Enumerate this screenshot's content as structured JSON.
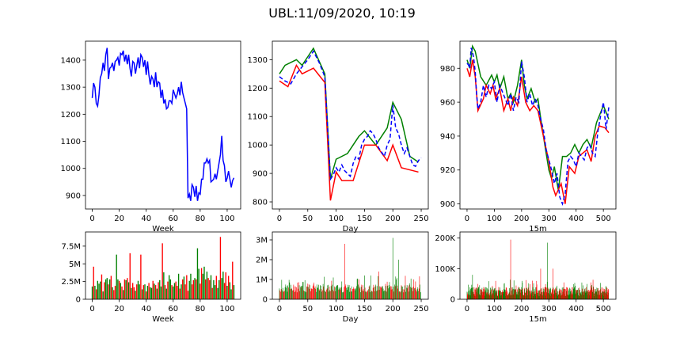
{
  "figure": {
    "title": "UBL:11/09/2020, 10:19"
  },
  "colors": {
    "price": "#0000ff",
    "high": "#008000",
    "low": "#ff0000",
    "up_bar": "#008000",
    "down_bar": "#ff0000"
  },
  "chart_data": [
    {
      "id": "week-price",
      "type": "line",
      "xlabel": "Week",
      "xlim": [
        -5,
        110
      ],
      "ylim": [
        850,
        1470
      ],
      "xticks": [
        0,
        20,
        40,
        60,
        80,
        100
      ],
      "yticks": [
        900,
        1000,
        1100,
        1200,
        1300,
        1400
      ],
      "series": [
        {
          "color": "#0000ff",
          "style": "solid",
          "x": [
            0,
            1,
            2,
            3,
            4,
            5,
            6,
            7,
            8,
            9,
            10,
            11,
            12,
            13,
            14,
            15,
            16,
            17,
            18,
            19,
            20,
            21,
            22,
            23,
            24,
            25,
            26,
            27,
            28,
            29,
            30,
            31,
            32,
            33,
            34,
            35,
            36,
            37,
            38,
            39,
            40,
            41,
            42,
            43,
            44,
            45,
            46,
            47,
            48,
            49,
            50,
            51,
            52,
            53,
            54,
            55,
            56,
            57,
            58,
            59,
            60,
            61,
            62,
            63,
            64,
            65,
            66,
            67,
            68,
            69,
            70,
            71,
            72,
            73,
            74,
            75,
            76,
            77,
            78,
            79,
            80,
            81,
            82,
            83,
            84,
            85,
            86,
            87,
            88,
            89,
            90,
            91,
            92,
            93,
            94,
            95,
            96,
            97,
            98,
            99,
            100,
            101,
            102,
            103,
            104,
            105
          ],
          "values": [
            1260,
            1315,
            1300,
            1240,
            1230,
            1270,
            1335,
            1350,
            1390,
            1360,
            1420,
            1445,
            1330,
            1370,
            1375,
            1390,
            1360,
            1395,
            1400,
            1410,
            1380,
            1425,
            1420,
            1435,
            1395,
            1420,
            1385,
            1420,
            1370,
            1340,
            1395,
            1390,
            1350,
            1380,
            1410,
            1370,
            1420,
            1410,
            1375,
            1400,
            1345,
            1395,
            1345,
            1310,
            1340,
            1330,
            1300,
            1355,
            1300,
            1320,
            1315,
            1260,
            1290,
            1240,
            1255,
            1220,
            1225,
            1250,
            1250,
            1240,
            1290,
            1275,
            1260,
            1275,
            1300,
            1270,
            1320,
            1280,
            1260,
            1240,
            1220,
            890,
            905,
            880,
            940,
            930,
            895,
            935,
            880,
            910,
            905,
            960,
            960,
            1020,
            1020,
            1035,
            1020,
            1030,
            950,
            955,
            960,
            980,
            960,
            990,
            1020,
            1050,
            1120,
            1030,
            1010,
            950,
            965,
            990,
            960,
            930,
            955,
            965
          ]
        }
      ]
    },
    {
      "id": "day-price",
      "type": "line",
      "xlabel": "Day",
      "xlim": [
        -12.5,
        262.5
      ],
      "ylim": [
        775,
        1365
      ],
      "xticks": [
        0,
        50,
        100,
        150,
        200,
        250
      ],
      "yticks": [
        800,
        900,
        1000,
        1100,
        1200,
        1300
      ],
      "series": [
        {
          "color": "#008000",
          "style": "solid",
          "x": [
            0,
            10,
            30,
            40,
            60,
            80,
            90,
            100,
            110,
            120,
            140,
            150,
            170,
            190,
            200,
            215,
            230,
            245
          ],
          "values": [
            1250,
            1280,
            1300,
            1280,
            1340,
            1250,
            880,
            950,
            960,
            970,
            1030,
            1050,
            1000,
            1060,
            1150,
            1090,
            960,
            940
          ]
        },
        {
          "color": "#ff0000",
          "style": "solid",
          "x": [
            0,
            15,
            30,
            40,
            50,
            60,
            80,
            90,
            100,
            110,
            130,
            150,
            170,
            190,
            200,
            215,
            245
          ],
          "values": [
            1225,
            1205,
            1280,
            1250,
            1260,
            1270,
            1220,
            805,
            905,
            875,
            875,
            1000,
            1000,
            945,
            1000,
            920,
            905
          ]
        },
        {
          "color": "#0000ff",
          "style": "dashed",
          "x": [
            0,
            10,
            20,
            30,
            40,
            50,
            60,
            70,
            80,
            90,
            95,
            100,
            105,
            110,
            115,
            120,
            125,
            130,
            135,
            140,
            145,
            150,
            155,
            160,
            165,
            170,
            175,
            180,
            185,
            190,
            195,
            200,
            205,
            210,
            215,
            220,
            225,
            230,
            235,
            240,
            245,
            250
          ],
          "values": [
            1240,
            1225,
            1215,
            1250,
            1275,
            1300,
            1330,
            1290,
            1240,
            880,
            895,
            920,
            905,
            930,
            910,
            900,
            890,
            935,
            960,
            950,
            1000,
            1020,
            1030,
            1050,
            1040,
            1020,
            990,
            975,
            960,
            1000,
            1020,
            1140,
            1060,
            1040,
            1000,
            970,
            990,
            960,
            930,
            925,
            945,
            955
          ]
        }
      ]
    },
    {
      "id": "15m-price",
      "type": "line",
      "xlabel": "15m",
      "xlim": [
        -26,
        546
      ],
      "ylim": [
        897,
        996
      ],
      "xticks": [
        0,
        100,
        200,
        300,
        400,
        500
      ],
      "yticks": [
        900,
        920,
        940,
        960,
        980
      ],
      "series": [
        {
          "color": "#008000",
          "style": "solid",
          "x": [
            0,
            10,
            20,
            30,
            50,
            70,
            90,
            100,
            110,
            120,
            135,
            150,
            160,
            170,
            185,
            200,
            210,
            220,
            235,
            250,
            260,
            275,
            290,
            300,
            310,
            320,
            335,
            350,
            365,
            380,
            395,
            410,
            425,
            440,
            455,
            475,
            500,
            520
          ],
          "values": [
            985,
            980,
            993,
            990,
            975,
            970,
            976,
            972,
            976,
            968,
            975,
            962,
            965,
            960,
            970,
            985,
            970,
            962,
            968,
            960,
            962,
            945,
            930,
            920,
            915,
            922,
            908,
            928,
            928,
            930,
            935,
            930,
            935,
            938,
            933,
            948,
            958,
            950
          ]
        },
        {
          "color": "#ff0000",
          "style": "solid",
          "x": [
            0,
            10,
            20,
            30,
            40,
            60,
            70,
            85,
            95,
            105,
            120,
            135,
            150,
            160,
            170,
            185,
            200,
            215,
            230,
            245,
            260,
            280,
            300,
            315,
            325,
            345,
            360,
            375,
            395,
            410,
            425,
            440,
            455,
            470,
            485,
            505,
            520
          ],
          "values": [
            980,
            975,
            985,
            975,
            955,
            962,
            970,
            965,
            970,
            962,
            968,
            955,
            962,
            955,
            963,
            958,
            975,
            960,
            955,
            958,
            955,
            940,
            925,
            910,
            905,
            912,
            900,
            922,
            918,
            928,
            930,
            932,
            925,
            940,
            946,
            945,
            942
          ]
        },
        {
          "color": "#0000ff",
          "style": "dashed",
          "x": [
            0,
            5,
            10,
            15,
            20,
            25,
            30,
            35,
            40,
            50,
            60,
            70,
            80,
            90,
            100,
            110,
            120,
            130,
            140,
            150,
            160,
            170,
            180,
            190,
            200,
            210,
            220,
            230,
            240,
            250,
            260,
            270,
            280,
            290,
            300,
            310,
            320,
            330,
            340,
            350,
            360,
            370,
            380,
            390,
            400,
            410,
            420,
            430,
            440,
            450,
            460,
            470,
            480,
            490,
            500,
            510,
            520
          ],
          "values": [
            983,
            982,
            980,
            992,
            990,
            985,
            978,
            965,
            956,
            960,
            970,
            963,
            970,
            968,
            972,
            960,
            970,
            966,
            962,
            958,
            965,
            955,
            963,
            960,
            984,
            975,
            960,
            965,
            958,
            962,
            958,
            950,
            944,
            932,
            926,
            920,
            912,
            918,
            904,
            900,
            906,
            925,
            928,
            926,
            922,
            930,
            928,
            926,
            933,
            935,
            930,
            928,
            943,
            952,
            960,
            944,
            957
          ]
        }
      ]
    },
    {
      "id": "week-volume",
      "type": "bar",
      "xlabel": "Week",
      "xlim": [
        -5,
        110
      ],
      "ylim": [
        0,
        9500000
      ],
      "xticks": [
        0,
        20,
        40,
        60,
        80,
        100
      ],
      "yticks": [
        0,
        2500000,
        5000000,
        7500000
      ],
      "ytick_labels": [
        "0",
        "2.5M",
        "5M",
        "7.5M"
      ],
      "up": [
        1,
        0,
        1,
        0,
        1,
        1,
        1,
        0,
        1,
        0,
        1,
        1,
        0,
        1,
        0,
        1,
        0,
        0,
        1,
        1,
        0,
        1,
        0,
        1,
        0,
        1,
        0,
        1,
        0,
        1,
        0,
        0,
        1,
        0,
        1,
        1,
        0,
        1,
        0,
        1,
        0,
        1,
        0,
        1,
        1,
        0,
        1,
        0,
        1,
        0,
        1,
        1,
        0,
        1,
        0,
        1,
        0,
        1,
        1,
        0,
        1,
        1,
        0,
        0,
        1,
        0,
        1,
        0,
        1,
        0,
        0,
        0,
        1,
        1,
        0,
        0,
        1,
        0,
        1,
        1,
        0,
        0,
        1,
        1,
        0,
        1,
        0,
        0,
        1,
        0,
        1,
        1,
        0,
        1,
        1,
        0,
        1,
        1,
        0,
        0,
        1,
        0,
        1,
        1,
        0,
        1
      ],
      "values": [
        1800000,
        4600000,
        1900000,
        1400000,
        2600000,
        2200000,
        2500000,
        3500000,
        1100000,
        2400000,
        2800000,
        3000000,
        2100000,
        2800000,
        3300000,
        1700000,
        1300000,
        1900000,
        6300000,
        2800000,
        2600000,
        2300000,
        1800000,
        1300000,
        2800000,
        2700000,
        3000000,
        2400000,
        6500000,
        1600000,
        2300000,
        1700000,
        1200000,
        2100000,
        2600000,
        2100000,
        6300000,
        1400000,
        2000000,
        2100000,
        1100000,
        1900000,
        2300000,
        1700000,
        1600000,
        2600000,
        2200000,
        2000000,
        1500000,
        2400000,
        2700000,
        1800000,
        7900000,
        3800000,
        2000000,
        1500000,
        2500000,
        3400000,
        2800000,
        2000000,
        1800000,
        2300000,
        2500000,
        1900000,
        3600000,
        1500000,
        2100000,
        2800000,
        3200000,
        2100000,
        3400000,
        1200000,
        2600000,
        3600000,
        2100000,
        2700000,
        3000000,
        2800000,
        7200000,
        4300000,
        2200000,
        4400000,
        3600000,
        4600000,
        2800000,
        3900000,
        3000000,
        2700000,
        3400000,
        1600000,
        2700000,
        2000000,
        3300000,
        1600000,
        2700000,
        8800000,
        3000000,
        3900000,
        2300000,
        3800000,
        1900000,
        3300000,
        2400000,
        1400000,
        5300000,
        2000000
      ]
    },
    {
      "id": "day-volume",
      "type": "bar",
      "xlabel": "Day",
      "xlim": [
        -12.5,
        262.5
      ],
      "ylim": [
        0,
        3400000
      ],
      "xticks": [
        0,
        50,
        100,
        150,
        200,
        250
      ],
      "yticks": [
        0,
        1000000,
        2000000,
        3000000
      ],
      "ytick_labels": [
        "0",
        "1M",
        "2M",
        "3M"
      ],
      "spikes": [
        {
          "x": 30,
          "v": 600000,
          "c": "down"
        },
        {
          "x": 95,
          "v": 1100000,
          "c": "up"
        },
        {
          "x": 110,
          "v": 900000,
          "c": "up"
        },
        {
          "x": 115,
          "v": 2800000,
          "c": "down"
        },
        {
          "x": 140,
          "v": 1000000,
          "c": "down"
        },
        {
          "x": 150,
          "v": 1200000,
          "c": "up"
        },
        {
          "x": 175,
          "v": 1400000,
          "c": "down"
        },
        {
          "x": 200,
          "v": 3100000,
          "c": "up"
        },
        {
          "x": 206,
          "v": 1000000,
          "c": "up"
        },
        {
          "x": 210,
          "v": 2000000,
          "c": "up"
        },
        {
          "x": 230,
          "v": 800000,
          "c": "up"
        },
        {
          "x": 240,
          "v": 900000,
          "c": "down"
        }
      ],
      "base": [
        0.35,
        0.75
      ]
    },
    {
      "id": "15m-volume",
      "type": "bar",
      "xlabel": "15m",
      "xlim": [
        -26,
        546
      ],
      "ylim": [
        0,
        220000
      ],
      "xticks": [
        0,
        100,
        200,
        300,
        400,
        500
      ],
      "yticks": [
        0,
        100000,
        200000
      ],
      "ytick_labels": [
        "0",
        "100K",
        "200K"
      ],
      "spikes": [
        {
          "x": 20,
          "v": 80000,
          "c": "up"
        },
        {
          "x": 40,
          "v": 50000,
          "c": "down"
        },
        {
          "x": 105,
          "v": 60000,
          "c": "down"
        },
        {
          "x": 160,
          "v": 195000,
          "c": "down"
        },
        {
          "x": 180,
          "v": 45000,
          "c": "down"
        },
        {
          "x": 270,
          "v": 100000,
          "c": "down"
        },
        {
          "x": 295,
          "v": 185000,
          "c": "up"
        },
        {
          "x": 315,
          "v": 100000,
          "c": "down"
        },
        {
          "x": 355,
          "v": 55000,
          "c": "down"
        },
        {
          "x": 440,
          "v": 50000,
          "c": "up"
        },
        {
          "x": 520,
          "v": 58000,
          "c": "up"
        }
      ],
      "base": [
        10000,
        40000
      ]
    }
  ]
}
